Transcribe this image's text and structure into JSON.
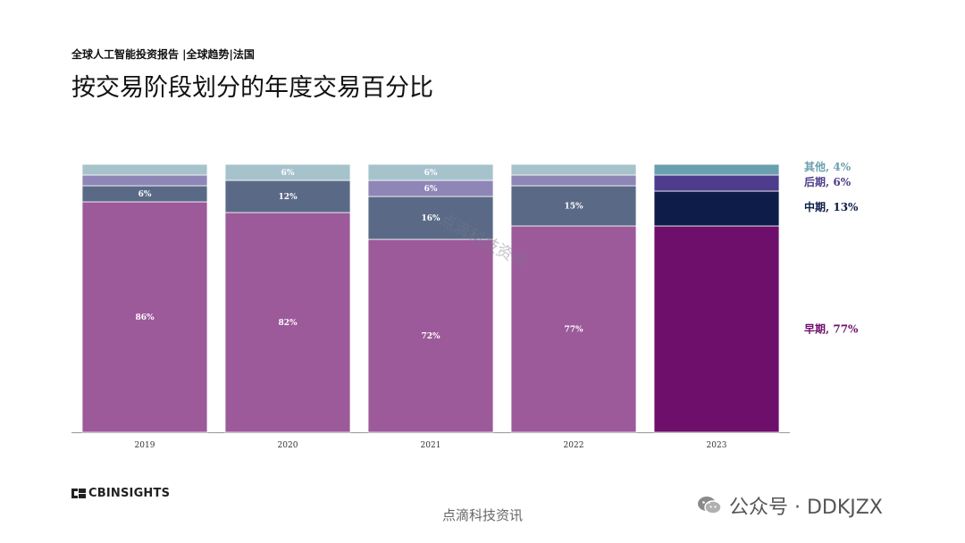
{
  "header": {
    "subtitle": "全球人工智能投资报告 |全球趋势|法国",
    "title": "按交易阶段划分的年度交易百分比"
  },
  "colors": {
    "early_light": "#9c5a9a",
    "early_2023": "#6e0f6c",
    "mid_light": "#5a6a86",
    "mid_2023": "#0d1c48",
    "late_light": "#8e86b6",
    "late_2023": "#4e3c8c",
    "other_light": "#a6c3cc",
    "other_2023": "#6a9fae",
    "legend_early": "#6e0f6c",
    "legend_mid": "#0d1c48",
    "legend_late": "#4e3c8c",
    "legend_other": "#6a9fae"
  },
  "chart_data": {
    "type": "bar",
    "stacked": true,
    "title": "按交易阶段划分的年度交易百分比",
    "xlabel": "",
    "ylabel": "",
    "ylim": [
      0,
      100
    ],
    "categories": [
      "2019",
      "2020",
      "2021",
      "2022",
      "2023"
    ],
    "series": [
      {
        "name": "早期",
        "values": [
          86,
          82,
          72,
          77,
          77
        ],
        "labels": [
          "86%",
          "82%",
          "72%",
          "77%",
          ""
        ]
      },
      {
        "name": "中期",
        "values": [
          6,
          12,
          16,
          15,
          13
        ],
        "labels": [
          "6%",
          "12%",
          "16%",
          "15%",
          ""
        ]
      },
      {
        "name": "后期",
        "values": [
          4,
          0,
          6,
          4,
          6
        ],
        "labels": [
          "",
          "",
          "6%",
          "",
          ""
        ]
      },
      {
        "name": "其他",
        "values": [
          4,
          6,
          6,
          4,
          4
        ],
        "labels": [
          "",
          "6%",
          "6%",
          "",
          ""
        ]
      }
    ],
    "legend": [
      {
        "series": "其他",
        "label": "其他, 4%"
      },
      {
        "series": "后期",
        "label": "后期, 6%"
      },
      {
        "series": "中期",
        "label": "中期, 13%"
      },
      {
        "series": "早期",
        "label": "早期, 77%"
      }
    ],
    "legend_position": "right"
  },
  "footer": {
    "brand": "CBINSIGHTS",
    "watermark": "点滴科技资讯",
    "diagonal_watermark": "点滴科技资讯",
    "wechat": "公众号 · DDKJZX"
  }
}
